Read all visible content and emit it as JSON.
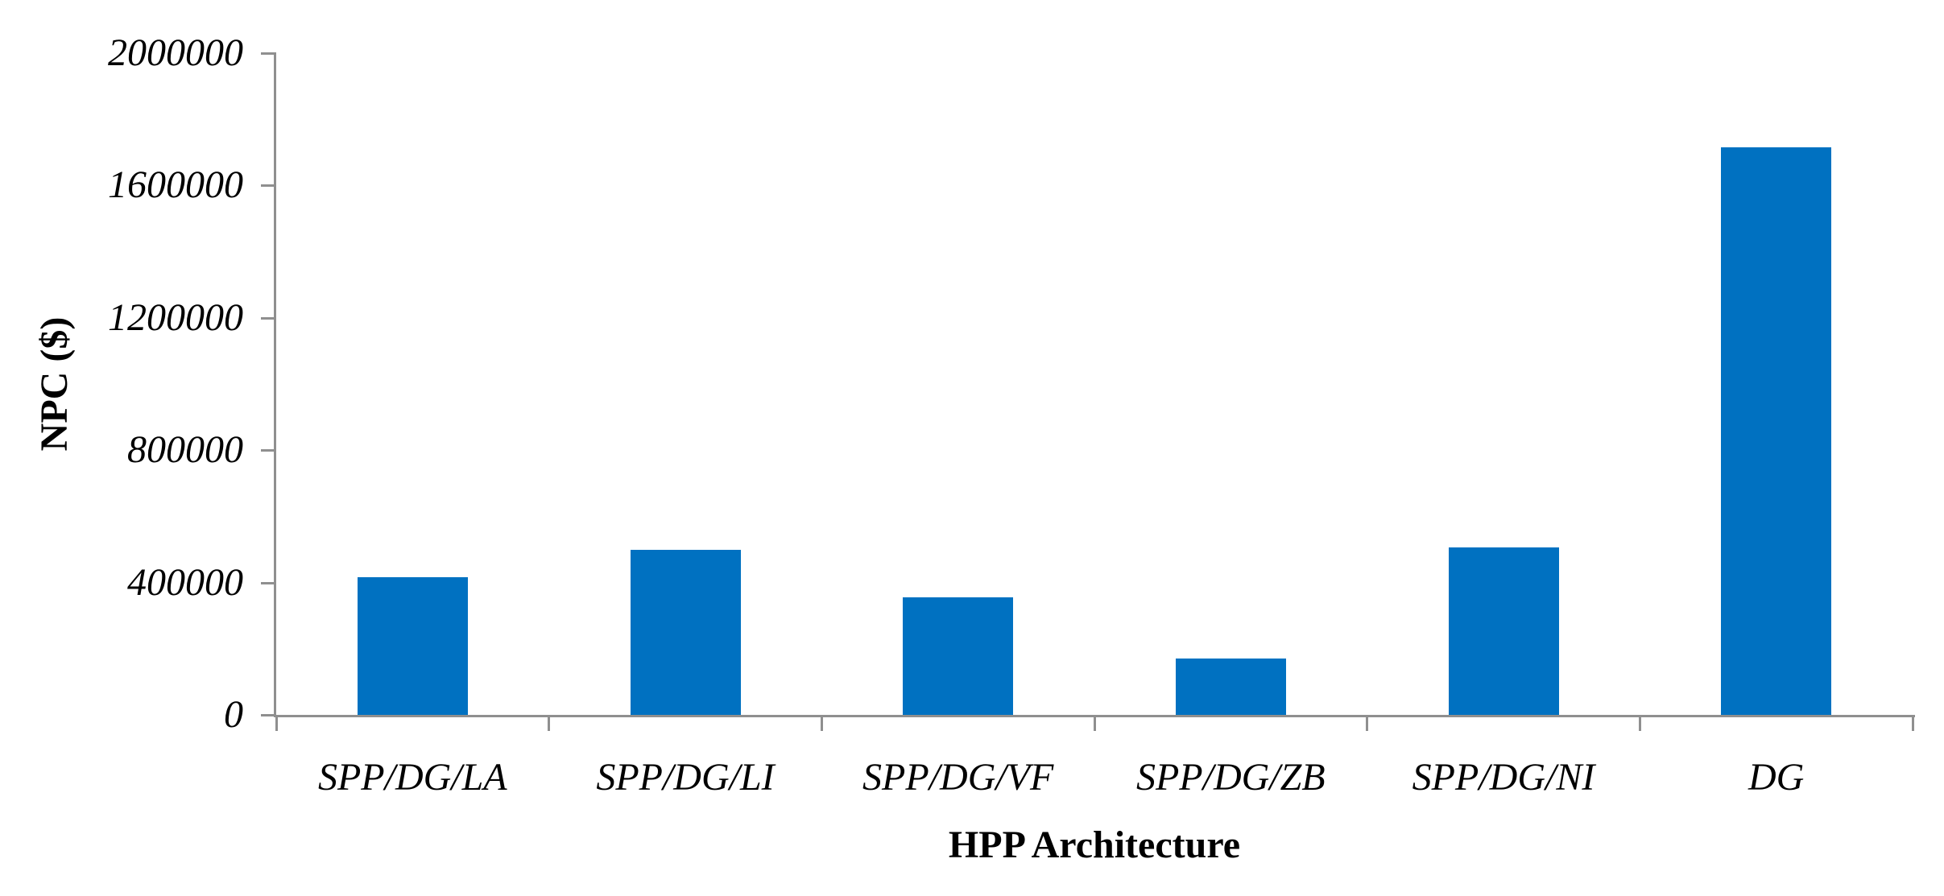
{
  "figure": {
    "background_color": "#ffffff",
    "bar_color": "#0071c1",
    "axis_color": "#8f8f8f",
    "text_color": "#000000"
  },
  "chart_data": {
    "type": "bar",
    "title": "",
    "xlabel": "HPP Architecture",
    "ylabel": "NPC ($)",
    "categories": [
      "SPP/DG/LA",
      "SPP/DG/LI",
      "SPP/DG/VF",
      "SPP/DG/ZB",
      "SPP/DG/NI",
      "DG"
    ],
    "values": [
      415000,
      500000,
      355000,
      170000,
      505000,
      1715000
    ],
    "ylim": [
      0,
      2000000
    ],
    "yticks": [
      0,
      400000,
      800000,
      1200000,
      1600000,
      2000000
    ],
    "grid": "off",
    "legend": "none",
    "bar_count": 6
  }
}
